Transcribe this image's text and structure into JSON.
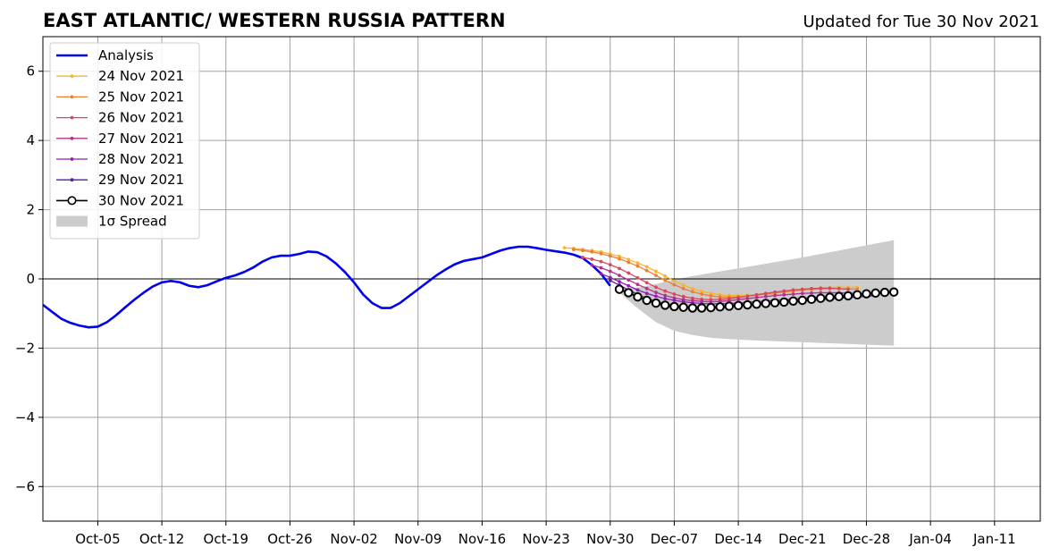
{
  "chart_data": {
    "type": "line",
    "title": "EAST ATLANTIC/ WESTERN RUSSIA PATTERN",
    "subtitle": "Updated for Tue 30 Nov 2021",
    "xlabel": "",
    "ylabel": "",
    "x_axis": "date",
    "xlim": [
      "2021-09-29",
      "2022-01-16"
    ],
    "ylim": [
      -7,
      7
    ],
    "yticks": [
      -6,
      -4,
      -2,
      0,
      2,
      4,
      6
    ],
    "ytick_labels": [
      "−6",
      "−4",
      "−2",
      "0",
      "2",
      "4",
      "6"
    ],
    "xticks": [
      "2021-10-05",
      "2021-10-12",
      "2021-10-19",
      "2021-10-26",
      "2021-11-02",
      "2021-11-09",
      "2021-11-16",
      "2021-11-23",
      "2021-11-30",
      "2021-12-07",
      "2021-12-14",
      "2021-12-21",
      "2021-12-28",
      "2022-01-04",
      "2022-01-11"
    ],
    "xtick_labels": [
      "Oct-05",
      "Oct-12",
      "Oct-19",
      "Oct-26",
      "Nov-02",
      "Nov-09",
      "Nov-16",
      "Nov-23",
      "Nov-30",
      "Dec-07",
      "Dec-14",
      "Dec-21",
      "Dec-28",
      "Jan-04",
      "Jan-11"
    ],
    "grid": true,
    "zero_line": true,
    "legend_position": "top-left",
    "analysis": {
      "name": "Analysis",
      "color": "#0000ee",
      "x": [
        "2021-09-29",
        "2021-09-30",
        "2021-10-01",
        "2021-10-02",
        "2021-10-03",
        "2021-10-04",
        "2021-10-05",
        "2021-10-06",
        "2021-10-07",
        "2021-10-08",
        "2021-10-09",
        "2021-10-10",
        "2021-10-11",
        "2021-10-12",
        "2021-10-13",
        "2021-10-14",
        "2021-10-15",
        "2021-10-16",
        "2021-10-17",
        "2021-10-18",
        "2021-10-19",
        "2021-10-20",
        "2021-10-21",
        "2021-10-22",
        "2021-10-23",
        "2021-10-24",
        "2021-10-25",
        "2021-10-26",
        "2021-10-27",
        "2021-10-28",
        "2021-10-29",
        "2021-10-30",
        "2021-10-31",
        "2021-11-01",
        "2021-11-02",
        "2021-11-03",
        "2021-11-04",
        "2021-11-05",
        "2021-11-06",
        "2021-11-07",
        "2021-11-08",
        "2021-11-09",
        "2021-11-10",
        "2021-11-11",
        "2021-11-12",
        "2021-11-13",
        "2021-11-14",
        "2021-11-15",
        "2021-11-16",
        "2021-11-17",
        "2021-11-18",
        "2021-11-19",
        "2021-11-20",
        "2021-11-21",
        "2021-11-22",
        "2021-11-23",
        "2021-11-24",
        "2021-11-25",
        "2021-11-26",
        "2021-11-27",
        "2021-11-28",
        "2021-11-29",
        "2021-11-30"
      ],
      "y": [
        -0.75,
        -0.95,
        -1.15,
        -1.27,
        -1.35,
        -1.4,
        -1.38,
        -1.25,
        -1.05,
        -0.82,
        -0.6,
        -0.4,
        -0.22,
        -0.1,
        -0.06,
        -0.1,
        -0.2,
        -0.24,
        -0.18,
        -0.07,
        0.03,
        0.1,
        0.2,
        0.33,
        0.5,
        0.62,
        0.67,
        0.67,
        0.72,
        0.79,
        0.77,
        0.65,
        0.45,
        0.2,
        -0.1,
        -0.45,
        -0.7,
        -0.84,
        -0.84,
        -0.7,
        -0.5,
        -0.3,
        -0.1,
        0.1,
        0.27,
        0.42,
        0.52,
        0.57,
        0.62,
        0.72,
        0.82,
        0.89,
        0.93,
        0.93,
        0.89,
        0.84,
        0.8,
        0.76,
        0.7,
        0.6,
        0.4,
        0.15,
        -0.2
      ]
    },
    "forecasts": [
      {
        "name": "24 Nov 2021",
        "color": "#f7b42c",
        "start": "2021-11-25",
        "y": [
          0.9,
          0.88,
          0.85,
          0.82,
          0.78,
          0.72,
          0.65,
          0.56,
          0.46,
          0.35,
          0.22,
          0.08,
          -0.06,
          -0.18,
          -0.28,
          -0.36,
          -0.42,
          -0.46,
          -0.48,
          -0.48,
          -0.47,
          -0.45,
          -0.42,
          -0.39,
          -0.36,
          -0.33,
          -0.3,
          -0.28,
          -0.26,
          -0.25,
          -0.24,
          -0.24,
          -0.25
        ]
      },
      {
        "name": "25 Nov 2021",
        "color": "#ef7d32",
        "start": "2021-11-26",
        "y": [
          0.85,
          0.82,
          0.78,
          0.73,
          0.66,
          0.58,
          0.48,
          0.37,
          0.24,
          0.1,
          -0.04,
          -0.17,
          -0.28,
          -0.37,
          -0.44,
          -0.49,
          -0.52,
          -0.53,
          -0.52,
          -0.5,
          -0.47,
          -0.44,
          -0.41,
          -0.38,
          -0.35,
          -0.32,
          -0.3,
          -0.29,
          -0.28,
          -0.28,
          -0.29,
          -0.3
        ]
      },
      {
        "name": "26 Nov 2021",
        "color": "#d9475f",
        "start": "2021-11-27",
        "y": [
          0.62,
          0.57,
          0.5,
          0.41,
          0.3,
          0.17,
          0.03,
          -0.11,
          -0.24,
          -0.35,
          -0.44,
          -0.51,
          -0.56,
          -0.59,
          -0.6,
          -0.59,
          -0.57,
          -0.54,
          -0.5,
          -0.46,
          -0.42,
          -0.38,
          -0.35,
          -0.32,
          -0.3,
          -0.28,
          -0.27,
          -0.27,
          -0.28,
          -0.3
        ]
      },
      {
        "name": "27 Nov 2021",
        "color": "#b3308f",
        "start": "2021-11-28",
        "y": [
          0.4,
          0.32,
          0.22,
          0.1,
          -0.03,
          -0.16,
          -0.28,
          -0.39,
          -0.48,
          -0.55,
          -0.6,
          -0.63,
          -0.65,
          -0.66,
          -0.65,
          -0.63,
          -0.6,
          -0.57,
          -0.54,
          -0.51,
          -0.48,
          -0.46,
          -0.44,
          -0.42,
          -0.41,
          -0.4,
          -0.4,
          -0.4,
          -0.41,
          -0.42
        ]
      },
      {
        "name": "28 Nov 2021",
        "color": "#8e1fb2",
        "start": "2021-11-29",
        "y": [
          0.15,
          0.04,
          -0.08,
          -0.2,
          -0.32,
          -0.42,
          -0.5,
          -0.57,
          -0.62,
          -0.66,
          -0.69,
          -0.71,
          -0.72,
          -0.72,
          -0.71,
          -0.7,
          -0.68,
          -0.66,
          -0.64,
          -0.62,
          -0.6,
          -0.58,
          -0.56,
          -0.54,
          -0.52,
          -0.5,
          -0.49,
          -0.48,
          -0.47,
          -0.46
        ]
      },
      {
        "name": "29 Nov 2021",
        "color": "#5a1a9e",
        "start": "2021-11-30",
        "y": [
          -0.05,
          -0.18,
          -0.32,
          -0.45,
          -0.56,
          -0.65,
          -0.72,
          -0.77,
          -0.8,
          -0.82,
          -0.83,
          -0.83,
          -0.82,
          -0.8,
          -0.78,
          -0.76,
          -0.74,
          -0.72,
          -0.7,
          -0.68,
          -0.66,
          -0.64,
          -0.62,
          -0.6,
          -0.58,
          -0.56,
          -0.54,
          -0.52,
          -0.5,
          -0.48
        ]
      },
      {
        "name": "30 Nov 2021",
        "color": "#000000",
        "marker": "open-circle",
        "start": "2021-12-01",
        "y": [
          -0.3,
          -0.4,
          -0.52,
          -0.62,
          -0.7,
          -0.76,
          -0.8,
          -0.82,
          -0.84,
          -0.84,
          -0.83,
          -0.81,
          -0.79,
          -0.77,
          -0.75,
          -0.73,
          -0.71,
          -0.69,
          -0.67,
          -0.64,
          -0.62,
          -0.59,
          -0.56,
          -0.53,
          -0.51,
          -0.49,
          -0.46,
          -0.43,
          -0.41,
          -0.39,
          -0.38
        ]
      }
    ],
    "spread": {
      "name": "1σ Spread",
      "color": "#cccccc",
      "x": [
        "2021-12-01",
        "2021-12-03",
        "2021-12-05",
        "2021-12-07",
        "2021-12-09",
        "2021-12-11",
        "2021-12-13",
        "2021-12-15",
        "2021-12-17",
        "2021-12-19",
        "2021-12-21",
        "2021-12-23",
        "2021-12-25",
        "2021-12-27",
        "2021-12-29",
        "2021-12-31"
      ],
      "upper": [
        -0.3,
        -0.25,
        -0.15,
        -0.02,
        0.08,
        0.17,
        0.26,
        0.35,
        0.44,
        0.53,
        0.62,
        0.72,
        0.82,
        0.92,
        1.02,
        1.12
      ],
      "lower": [
        -0.4,
        -0.85,
        -1.25,
        -1.5,
        -1.62,
        -1.7,
        -1.74,
        -1.77,
        -1.79,
        -1.81,
        -1.83,
        -1.85,
        -1.87,
        -1.89,
        -1.91,
        -1.93
      ]
    }
  }
}
